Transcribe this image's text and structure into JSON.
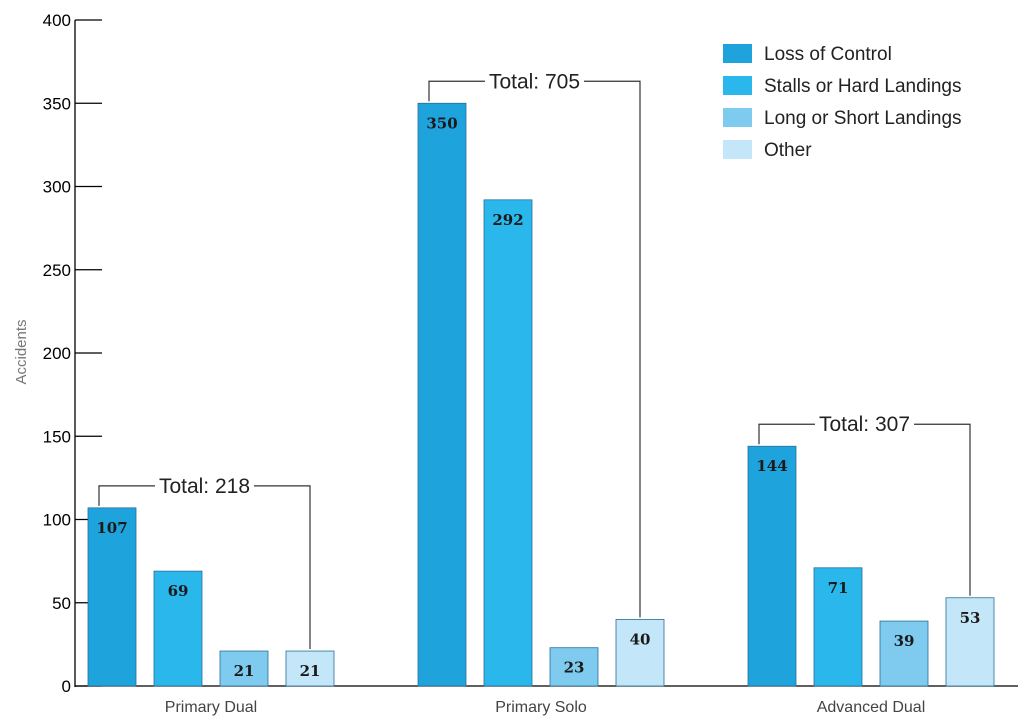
{
  "chart_data": {
    "type": "bar",
    "ylabel": "Accidents",
    "xlabel": "",
    "ylim": [
      0,
      400
    ],
    "yticks": [
      0,
      50,
      100,
      150,
      200,
      250,
      300,
      350,
      400
    ],
    "ytick_labels": [
      "0",
      "50",
      "100",
      "150",
      "200",
      "250",
      "300",
      "350",
      "400"
    ],
    "categories": [
      "Primary Dual",
      "Primary Solo",
      "Advanced Dual"
    ],
    "series": [
      {
        "name": "Loss of Control",
        "color": "#1fa3dc",
        "values": [
          107,
          350,
          144
        ],
        "labels": [
          "107",
          "350",
          "144"
        ]
      },
      {
        "name": "Stalls or Hard Landings",
        "color": "#2ab8ec",
        "values": [
          69,
          292,
          71
        ],
        "labels": [
          "69",
          "292",
          "71"
        ]
      },
      {
        "name": "Long or Short Landings",
        "color": "#7ecbef",
        "values": [
          21,
          23,
          39
        ],
        "labels": [
          "21",
          "23",
          "39"
        ]
      },
      {
        "name": "Other",
        "color": "#c3e6f8",
        "values": [
          21,
          40,
          53
        ],
        "labels": [
          "21",
          "40",
          "53"
        ]
      }
    ],
    "totals": [
      "Total: 218",
      "Total: 705",
      "Total: 307"
    ],
    "legend_position": "top-right",
    "grid": false
  }
}
